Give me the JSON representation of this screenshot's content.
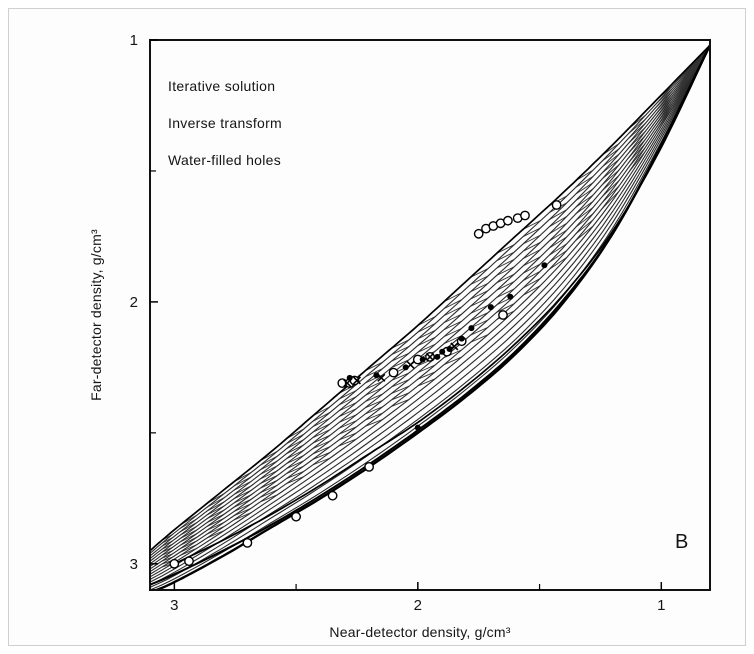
{
  "chart_data": {
    "type": "line",
    "xlabel": "Near-detector density, g/cm³",
    "ylabel": "Far-detector density, g/cm³",
    "x_axis": {
      "reversed": true,
      "lim": [
        3.1,
        0.8
      ],
      "ticks": [
        3,
        2,
        1
      ],
      "tick_labels": [
        "3",
        "2",
        "1"
      ]
    },
    "y_axis": {
      "reversed": true,
      "lim": [
        1,
        3.1
      ],
      "ticks": [
        1,
        2,
        3
      ],
      "tick_labels": [
        "1",
        "2",
        "3"
      ]
    },
    "grid": false,
    "legend": {
      "placement": "top-left",
      "entries": [
        "Iterative solution",
        "Inverse transform",
        "Water-filled holes"
      ]
    },
    "panel_label": "B",
    "series": [
      {
        "role": "upper-boundary",
        "x": [
          3.1,
          3.0,
          2.8,
          2.6,
          2.4,
          2.2,
          2.0,
          1.8,
          1.6,
          1.4,
          1.2,
          1.0,
          0.8
        ],
        "y": [
          2.95,
          2.87,
          2.72,
          2.57,
          2.41,
          2.25,
          2.09,
          1.92,
          1.75,
          1.58,
          1.4,
          1.21,
          1.02
        ]
      },
      {
        "role": "lower-boundary",
        "x": [
          3.1,
          3.0,
          2.8,
          2.6,
          2.4,
          2.2,
          2.0,
          1.8,
          1.6,
          1.4,
          1.2,
          1.0,
          0.8
        ],
        "y": [
          3.11,
          3.07,
          2.97,
          2.86,
          2.75,
          2.63,
          2.5,
          2.36,
          2.2,
          2.0,
          1.74,
          1.4,
          1.02
        ]
      },
      {
        "role": "iterative-solution",
        "x": [
          3.0,
          2.8,
          2.6,
          2.4,
          2.2,
          2.0,
          1.8,
          1.6,
          1.4,
          1.2,
          1.0,
          0.8
        ],
        "y": [
          3.0,
          2.91,
          2.81,
          2.7,
          2.58,
          2.46,
          2.32,
          2.16,
          1.97,
          1.73,
          1.41,
          1.02
        ]
      },
      {
        "role": "inverse-transform",
        "x": [
          3.1,
          3.0,
          2.8,
          2.6,
          2.4,
          2.2,
          2.0,
          1.8,
          1.6,
          1.4,
          1.2,
          1.0,
          0.8
        ],
        "y": [
          3.08,
          3.04,
          2.95,
          2.85,
          2.74,
          2.62,
          2.49,
          2.35,
          2.19,
          1.99,
          1.74,
          1.4,
          1.02
        ]
      }
    ],
    "observations": {
      "water_filled_holes": {
        "marker": "open-circle",
        "x": [
          3.0,
          2.94,
          2.7,
          2.5,
          2.35,
          2.2,
          2.31,
          2.28,
          2.26,
          2.1,
          2.0,
          1.95,
          1.88,
          1.82,
          1.75,
          1.72,
          1.69,
          1.66,
          1.63,
          1.59,
          1.56,
          1.43,
          1.65
        ],
        "y": [
          3.0,
          2.99,
          2.92,
          2.82,
          2.74,
          2.63,
          2.31,
          2.31,
          2.3,
          2.27,
          2.22,
          2.21,
          2.19,
          2.15,
          1.74,
          1.72,
          1.71,
          1.7,
          1.69,
          1.68,
          1.67,
          1.63,
          2.05
        ]
      },
      "iterative_solution": {
        "marker": "filled-dot",
        "x": [
          2.28,
          2.17,
          2.05,
          1.98,
          1.92,
          1.9,
          1.87,
          1.82,
          1.78,
          1.7,
          1.62,
          1.48,
          2.0
        ],
        "y": [
          2.29,
          2.28,
          2.25,
          2.22,
          2.21,
          2.19,
          2.18,
          2.14,
          2.1,
          2.02,
          1.98,
          1.86,
          2.48
        ]
      },
      "inverse_transform": {
        "marker": "cross",
        "x": [
          2.29,
          2.25,
          2.15,
          2.03,
          1.95,
          1.85
        ],
        "y": [
          2.31,
          2.3,
          2.29,
          2.24,
          2.21,
          2.17
        ]
      }
    }
  }
}
